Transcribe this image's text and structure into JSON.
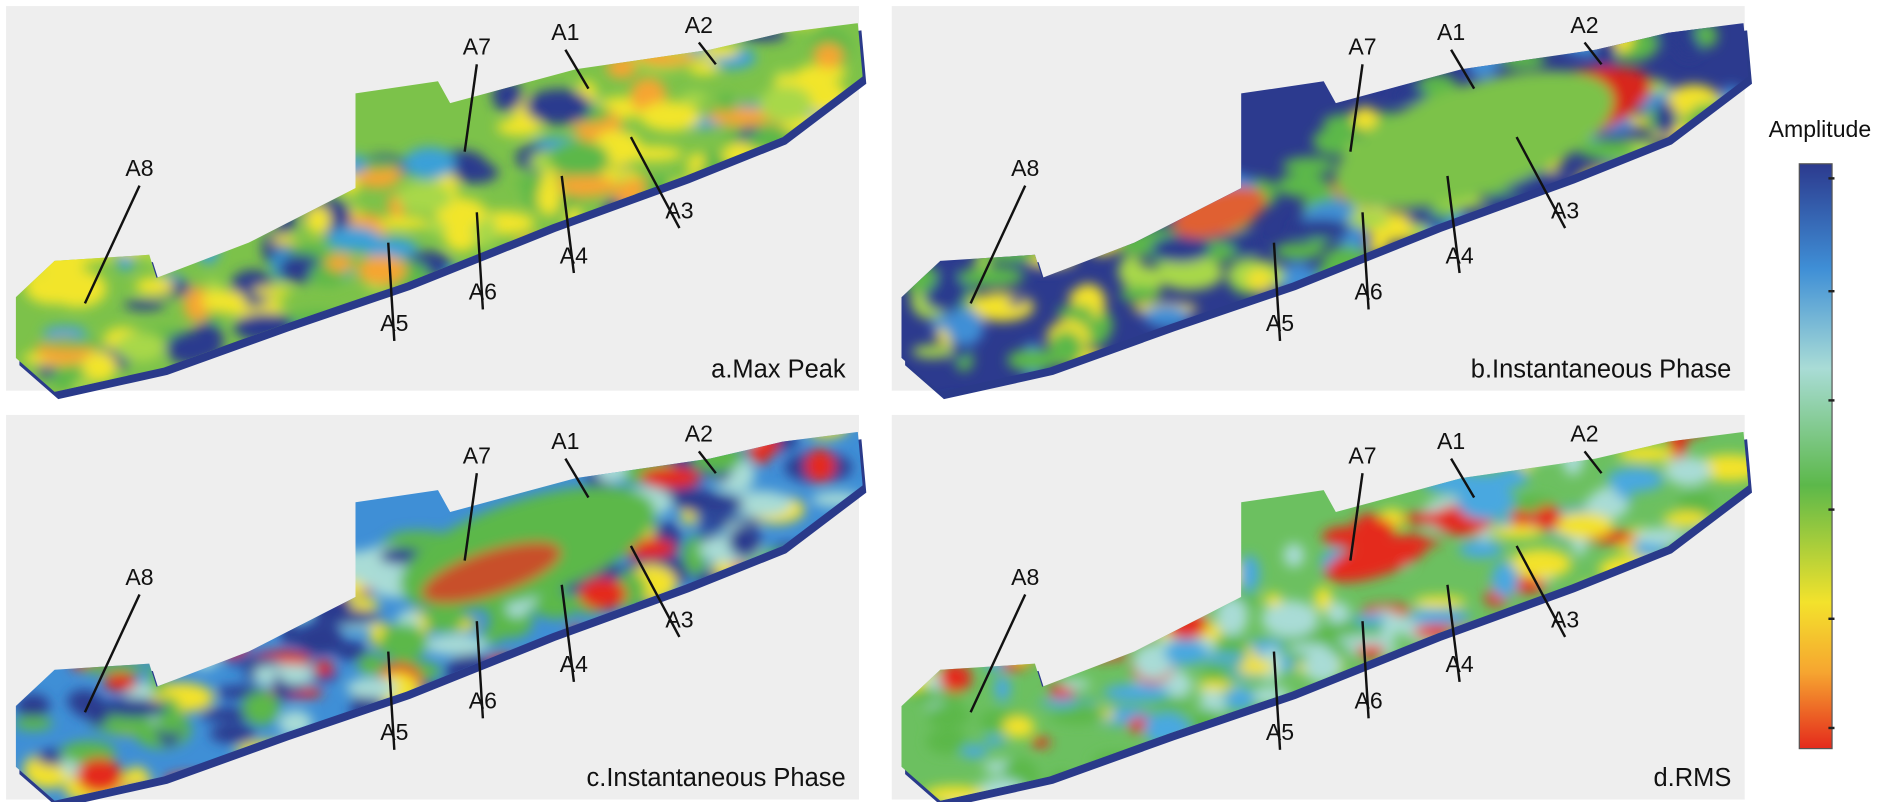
{
  "figure": {
    "well_labels": [
      "A1",
      "A2",
      "A3",
      "A4",
      "A5",
      "A6",
      "A7",
      "A8"
    ],
    "panels": [
      {
        "label": "a.Max Peak"
      },
      {
        "label": "b.Instantaneous Phase"
      },
      {
        "label": "c.Instantaneous Phase"
      },
      {
        "label": "d.RMS"
      }
    ],
    "colorbar": {
      "title": "Amplitude"
    }
  }
}
